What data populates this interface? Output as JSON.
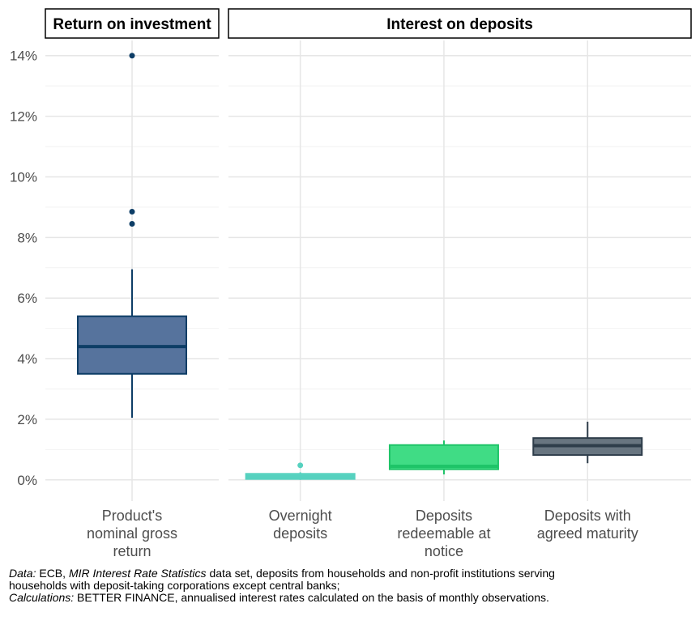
{
  "chart_data": {
    "type": "boxplot",
    "y_axis": {
      "ylim": [
        -0.7,
        14.5
      ],
      "ticks": [
        0,
        2,
        4,
        6,
        8,
        10,
        12,
        14
      ],
      "tick_labels": [
        "0%",
        "2%",
        "4%",
        "6%",
        "8%",
        "10%",
        "12%",
        "14%"
      ]
    },
    "grid": true,
    "panels": [
      {
        "title": "Return on investment",
        "categories": [
          {
            "label_lines": [
              "Product's",
              "nominal gross",
              "return"
            ],
            "whisker_low": 2.05,
            "q1": 3.5,
            "median": 4.4,
            "q3": 5.4,
            "whisker_high": 6.95,
            "outliers": [
              8.45,
              8.85,
              14.0
            ],
            "fill": "#56739d",
            "stroke": "#0d3d66"
          }
        ]
      },
      {
        "title": "Interest on deposits",
        "categories": [
          {
            "label_lines": [
              "Overnight",
              "deposits"
            ],
            "whisker_low": 0.0,
            "q1": 0.03,
            "median": 0.1,
            "q3": 0.2,
            "whisker_high": 0.25,
            "outliers": [
              0.48
            ],
            "fill": "#5dd6c3",
            "stroke": "#56d1bf"
          },
          {
            "label_lines": [
              "Deposits",
              "redeemable at",
              "notice"
            ],
            "whisker_low": 0.18,
            "q1": 0.35,
            "median": 0.45,
            "q3": 1.15,
            "whisker_high": 1.3,
            "outliers": [],
            "fill": "#40dc85",
            "stroke": "#1ec468"
          },
          {
            "label_lines": [
              "Deposits with",
              "agreed maturity"
            ],
            "whisker_low": 0.55,
            "q1": 0.82,
            "median": 1.13,
            "q3": 1.38,
            "whisker_high": 1.92,
            "outliers": [],
            "fill": "#687580",
            "stroke": "#2e3d4a"
          }
        ]
      }
    ]
  },
  "caption": {
    "data_label": "Data:",
    "data_source": "ECB,",
    "dataset_name": "MIR Interest Rate Statistics",
    "data_description": "data set, deposits from households and non-profit institutions serving households with deposit-taking corporations except central banks;",
    "calc_label": "Calculations:",
    "calc_text": "BETTER FINANCE, annualised interest rates calculated on the basis of monthly observations."
  }
}
